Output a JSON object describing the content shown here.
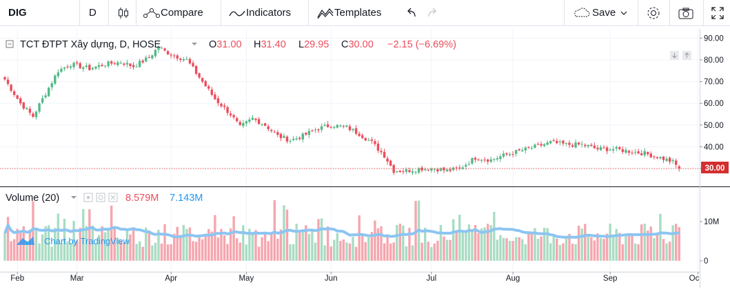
{
  "toolbar": {
    "symbol": "DIG",
    "interval": "D",
    "compare": "Compare",
    "indicators": "Indicators",
    "templates": "Templates",
    "save": "Save"
  },
  "legend": {
    "name": "TCT ĐTPT Xây dựng, D, HOSE",
    "o_label": "O",
    "o": "31.00",
    "h_label": "H",
    "h": "31.40",
    "l_label": "L",
    "l": "29.95",
    "c_label": "C",
    "c": "30.00",
    "change": "−2.15 (−6.69%)"
  },
  "volume_legend": {
    "label": "Volume (20)",
    "volume": "8.579M",
    "ma": "7.143M"
  },
  "watermark": "Chart by TradingView",
  "colors": {
    "up": "#53b987",
    "down": "#eb4d5c",
    "up_vol": "#a9dcc3",
    "down_vol": "#f5a6ae",
    "ma_line": "#8cc5f2",
    "price_line": "#ef5350",
    "price_label_bg": "#d32f2f"
  },
  "chart_data": [
    {
      "type": "candlestick",
      "x_tick_labels": [
        "Feb",
        "Mar",
        "Apr",
        "May",
        "Jun",
        "Jul",
        "Aug",
        "Sep",
        "Oc"
      ],
      "y_axis": {
        "ticks": [
          30,
          40,
          50,
          60,
          70,
          80,
          90
        ],
        "tick_labels": [
          "30.00",
          "40.00",
          "50.00",
          "60.00",
          "70.00",
          "80.00",
          "90.00"
        ],
        "range": [
          24,
          92
        ],
        "position": "right"
      },
      "last_price_label": "30.00",
      "close_path": [
        [
          0,
          71
        ],
        [
          5,
          60
        ],
        [
          9,
          54
        ],
        [
          12,
          62
        ],
        [
          17,
          75
        ],
        [
          21,
          78
        ],
        [
          27,
          76
        ],
        [
          32,
          78
        ],
        [
          37,
          79
        ],
        [
          41,
          77
        ],
        [
          46,
          81
        ],
        [
          49,
          86
        ],
        [
          51,
          84
        ],
        [
          54,
          82
        ],
        [
          58,
          80
        ],
        [
          63,
          70
        ],
        [
          67,
          62
        ],
        [
          72,
          55
        ],
        [
          75,
          49
        ],
        [
          79,
          53
        ],
        [
          83,
          50
        ],
        [
          87,
          45
        ],
        [
          91,
          43
        ],
        [
          95,
          45
        ],
        [
          99,
          48
        ],
        [
          104,
          50
        ],
        [
          109,
          49
        ],
        [
          113,
          46
        ],
        [
          117,
          42
        ],
        [
          121,
          36
        ],
        [
          124,
          29
        ],
        [
          128,
          29
        ],
        [
          133,
          30
        ],
        [
          137,
          30
        ],
        [
          141,
          29
        ],
        [
          145,
          30
        ],
        [
          150,
          35
        ],
        [
          155,
          34
        ],
        [
          159,
          36
        ],
        [
          164,
          38
        ],
        [
          169,
          40
        ],
        [
          174,
          42
        ],
        [
          179,
          41
        ],
        [
          184,
          41
        ],
        [
          189,
          39
        ],
        [
          194,
          39
        ],
        [
          199,
          38
        ],
        [
          204,
          37
        ],
        [
          209,
          35
        ],
        [
          213,
          33
        ],
        [
          215,
          30
        ]
      ]
    },
    {
      "type": "bar",
      "series": "volume",
      "y_axis": {
        "ticks": [
          0,
          10
        ],
        "tick_labels": [
          "0",
          "10M"
        ],
        "range": [
          0,
          18
        ]
      },
      "ma_period": 20
    }
  ]
}
